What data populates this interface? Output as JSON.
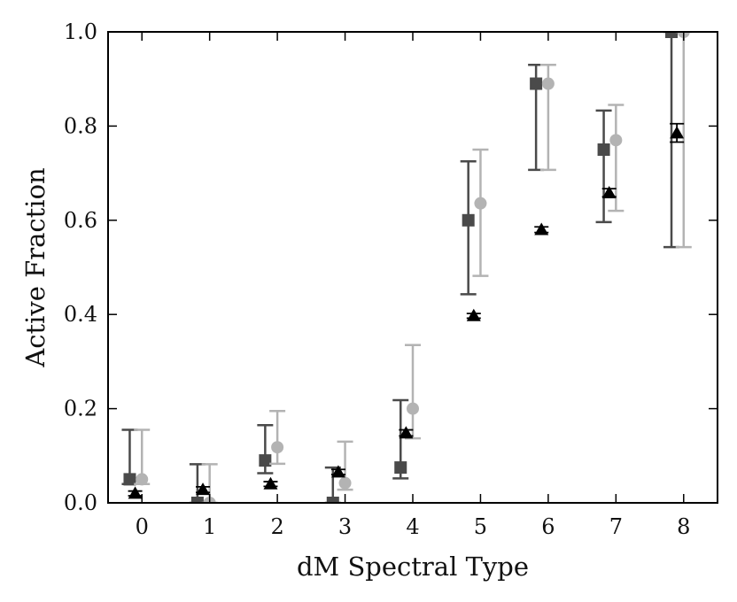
{
  "chart_data": {
    "type": "scatter",
    "title": "",
    "xlabel": "dM Spectral Type",
    "ylabel": "Active Fraction",
    "xlim": [
      -0.5,
      8.5
    ],
    "ylim": [
      0.0,
      1.0
    ],
    "x_ticks": [
      "0",
      "1",
      "2",
      "3",
      "4",
      "5",
      "6",
      "7",
      "8"
    ],
    "y_ticks": [
      "0.0",
      "0.2",
      "0.4",
      "0.6",
      "0.8",
      "1.0"
    ],
    "grid": false,
    "legend": "none",
    "series": [
      {
        "marker": "square",
        "color": "#4a4a4a",
        "x_offset": -0.18,
        "points": [
          {
            "x": 0,
            "y": 0.05,
            "ylo": 0.04,
            "yhi": 0.155
          },
          {
            "x": 1,
            "y": 0.0,
            "ylo": 0.0,
            "yhi": 0.082
          },
          {
            "x": 2,
            "y": 0.09,
            "ylo": 0.063,
            "yhi": 0.165
          },
          {
            "x": 3,
            "y": 0.0,
            "ylo": 0.0,
            "yhi": 0.075
          },
          {
            "x": 4,
            "y": 0.075,
            "ylo": 0.052,
            "yhi": 0.218
          },
          {
            "x": 5,
            "y": 0.6,
            "ylo": 0.443,
            "yhi": 0.725
          },
          {
            "x": 6,
            "y": 0.89,
            "ylo": 0.707,
            "yhi": 0.93
          },
          {
            "x": 7,
            "y": 0.75,
            "ylo": 0.596,
            "yhi": 0.833
          },
          {
            "x": 8,
            "y": 1.0,
            "ylo": 0.543,
            "yhi": 1.0
          }
        ]
      },
      {
        "marker": "circle",
        "color": "#b3b3b3",
        "x_offset": 0.0,
        "points": [
          {
            "x": 0,
            "y": 0.05,
            "ylo": 0.04,
            "yhi": 0.155
          },
          {
            "x": 1,
            "y": 0.0,
            "ylo": 0.0,
            "yhi": 0.082
          },
          {
            "x": 2,
            "y": 0.118,
            "ylo": 0.083,
            "yhi": 0.195
          },
          {
            "x": 3,
            "y": 0.042,
            "ylo": 0.028,
            "yhi": 0.13
          },
          {
            "x": 4,
            "y": 0.2,
            "ylo": 0.137,
            "yhi": 0.335
          },
          {
            "x": 5,
            "y": 0.636,
            "ylo": 0.482,
            "yhi": 0.75
          },
          {
            "x": 6,
            "y": 0.89,
            "ylo": 0.707,
            "yhi": 0.93
          },
          {
            "x": 7,
            "y": 0.77,
            "ylo": 0.62,
            "yhi": 0.845
          },
          {
            "x": 8,
            "y": 1.0,
            "ylo": 0.543,
            "yhi": 1.0
          }
        ]
      },
      {
        "marker": "triangle",
        "color": "#000000",
        "x_offset": -0.1,
        "points": [
          {
            "x": 0,
            "y": 0.02,
            "ylo": 0.015,
            "yhi": 0.025
          },
          {
            "x": 1,
            "y": 0.028,
            "ylo": 0.022,
            "yhi": 0.034
          },
          {
            "x": 2,
            "y": 0.04,
            "ylo": 0.035,
            "yhi": 0.045
          },
          {
            "x": 3,
            "y": 0.065,
            "ylo": 0.06,
            "yhi": 0.071
          },
          {
            "x": 4,
            "y": 0.148,
            "ylo": 0.142,
            "yhi": 0.155
          },
          {
            "x": 5,
            "y": 0.397,
            "ylo": 0.392,
            "yhi": 0.402
          },
          {
            "x": 6,
            "y": 0.58,
            "ylo": 0.574,
            "yhi": 0.586
          },
          {
            "x": 7,
            "y": 0.658,
            "ylo": 0.65,
            "yhi": 0.667
          },
          {
            "x": 8,
            "y": 0.785,
            "ylo": 0.766,
            "yhi": 0.805
          }
        ]
      }
    ]
  }
}
